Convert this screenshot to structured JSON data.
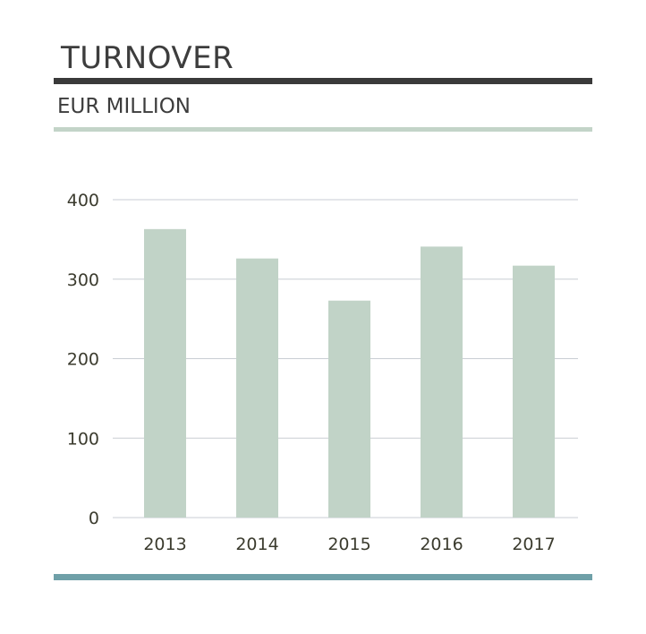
{
  "header": {
    "title": "TURNOVER",
    "subtitle": "EUR MILLION"
  },
  "colors": {
    "title_rule": "#3a3a3a",
    "subtitle_rule": "#c3d4c8",
    "bar": "#c1d3c7",
    "gridline": "#c9ced4",
    "bottom_rule": "#6fa0a8",
    "tick_text": "#3b3b2e"
  },
  "chart_data": {
    "type": "bar",
    "title": "TURNOVER",
    "subtitle": "EUR MILLION",
    "xlabel": "",
    "ylabel": "",
    "categories": [
      "2013",
      "2014",
      "2015",
      "2016",
      "2017"
    ],
    "values": [
      363,
      326,
      273,
      341,
      317
    ],
    "ylim": [
      0,
      400
    ],
    "yticks": [
      0,
      100,
      200,
      300,
      400
    ],
    "grid": true,
    "legend": "none"
  }
}
